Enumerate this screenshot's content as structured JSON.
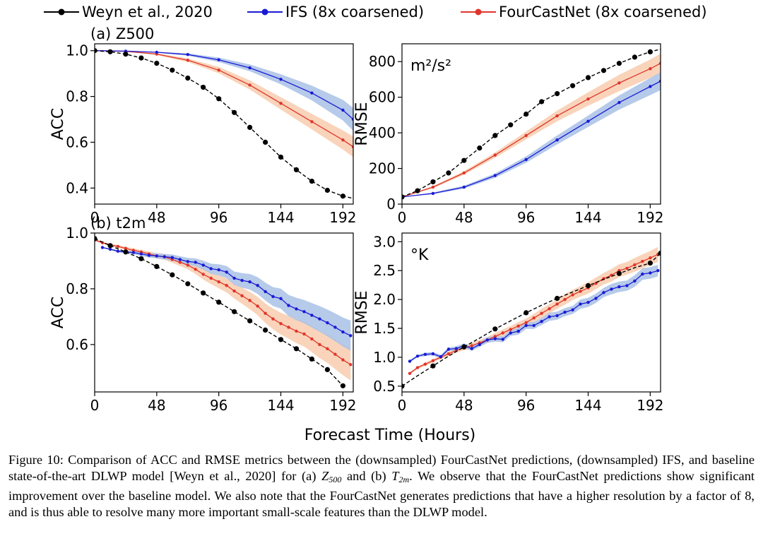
{
  "legend": {
    "entries": [
      {
        "label": "Weyn et al., 2020",
        "color": "#000000"
      },
      {
        "label": "IFS (8x coarsened)",
        "color": "#1010dd"
      },
      {
        "label": "FourCastNet (8x coarsened)",
        "color": "#e0352b"
      }
    ]
  },
  "xlabel_shared": "Forecast Time (Hours)",
  "colors": {
    "weyn": "#000000",
    "ifs": "#1a1ad4",
    "ifs_band": "#a9c1e6",
    "fcn": "#e0352b",
    "fcn_band": "#f8ccae"
  },
  "chart_data": [
    {
      "type": "line",
      "id": "acc_z500",
      "title": "(a) Z500",
      "ylabel": "ACC",
      "unit": "",
      "xlim": [
        0,
        200
      ],
      "ylim": [
        0.33,
        1.03
      ],
      "xticks": [
        "0",
        "48",
        "96",
        "144",
        "192"
      ],
      "xtick_values": [
        0,
        48,
        96,
        144,
        192
      ],
      "yticks": [
        "0.4",
        "0.6",
        "0.8",
        "1.0"
      ],
      "ytick_values": [
        0.4,
        0.6,
        0.8,
        1.0
      ],
      "series": [
        {
          "name": "Weyn et al., 2020",
          "key": "weyn",
          "x": [
            0,
            12,
            24,
            36,
            48,
            60,
            72,
            84,
            96,
            108,
            120,
            132,
            144,
            156,
            168,
            180,
            192,
            200
          ],
          "y": [
            1.0,
            0.995,
            0.985,
            0.968,
            0.945,
            0.915,
            0.88,
            0.84,
            0.79,
            0.73,
            0.665,
            0.6,
            0.535,
            0.48,
            0.43,
            0.39,
            0.365,
            0.355
          ],
          "markers": [
            0,
            12,
            24,
            36,
            48,
            60,
            72,
            84,
            96,
            108,
            120,
            132,
            144,
            156,
            168,
            180,
            192
          ]
        },
        {
          "name": "IFS (8x coarsened)",
          "key": "ifs",
          "x": [
            0,
            24,
            48,
            72,
            96,
            120,
            144,
            168,
            192,
            200
          ],
          "y": [
            1.0,
            0.998,
            0.993,
            0.983,
            0.96,
            0.925,
            0.875,
            0.815,
            0.74,
            0.7
          ],
          "band": [
            0.0,
            0.0,
            0.002,
            0.005,
            0.01,
            0.015,
            0.022,
            0.032,
            0.045,
            0.05
          ]
        },
        {
          "name": "FourCastNet (8x coarsened)",
          "key": "fcn",
          "x": [
            0,
            24,
            48,
            72,
            96,
            120,
            144,
            168,
            192,
            200
          ],
          "y": [
            1.0,
            0.997,
            0.985,
            0.958,
            0.915,
            0.85,
            0.77,
            0.69,
            0.61,
            0.58
          ],
          "band": [
            0.0,
            0.0,
            0.004,
            0.008,
            0.014,
            0.02,
            0.027,
            0.034,
            0.042,
            0.045
          ]
        }
      ]
    },
    {
      "type": "line",
      "id": "rmse_z500",
      "title": "",
      "ylabel": "RMSE",
      "unit": "m²/s²",
      "xlim": [
        0,
        200
      ],
      "ylim": [
        0,
        900
      ],
      "xticks": [
        "0",
        "48",
        "96",
        "144",
        "192"
      ],
      "xtick_values": [
        0,
        48,
        96,
        144,
        192
      ],
      "yticks": [
        "0",
        "200",
        "400",
        "600",
        "800"
      ],
      "ytick_values": [
        0,
        200,
        400,
        600,
        800
      ],
      "series": [
        {
          "name": "Weyn et al., 2020",
          "key": "weyn",
          "x": [
            0,
            12,
            24,
            36,
            48,
            60,
            72,
            84,
            96,
            108,
            120,
            132,
            144,
            156,
            168,
            180,
            192,
            200
          ],
          "y": [
            40,
            75,
            125,
            175,
            245,
            315,
            385,
            445,
            505,
            575,
            620,
            665,
            710,
            750,
            790,
            825,
            855,
            870
          ],
          "markers": [
            0,
            12,
            24,
            36,
            48,
            60,
            72,
            84,
            96,
            108,
            120,
            132,
            144,
            156,
            168,
            180,
            192
          ]
        },
        {
          "name": "IFS (8x coarsened)",
          "key": "ifs",
          "x": [
            0,
            24,
            48,
            72,
            96,
            120,
            144,
            168,
            192,
            200
          ],
          "y": [
            40,
            60,
            95,
            160,
            250,
            360,
            465,
            570,
            660,
            690
          ],
          "band": [
            0,
            5,
            8,
            12,
            18,
            25,
            32,
            40,
            48,
            50
          ]
        },
        {
          "name": "FourCastNet (8x coarsened)",
          "key": "fcn",
          "x": [
            0,
            24,
            48,
            72,
            96,
            120,
            144,
            168,
            192,
            200
          ],
          "y": [
            40,
            95,
            175,
            275,
            385,
            495,
            590,
            680,
            760,
            790
          ],
          "band": [
            0,
            6,
            10,
            15,
            22,
            30,
            38,
            46,
            52,
            55
          ]
        }
      ]
    },
    {
      "type": "line",
      "id": "acc_t2m",
      "title": "(b) t2m",
      "ylabel": "ACC",
      "unit": "",
      "xlim": [
        0,
        200
      ],
      "ylim": [
        0.43,
        1.0
      ],
      "xticks": [
        "0",
        "48",
        "96",
        "144",
        "192"
      ],
      "xtick_values": [
        0,
        48,
        96,
        144,
        192
      ],
      "yticks": [
        "0.6",
        "0.8",
        "1.0"
      ],
      "ytick_values": [
        0.6,
        0.8,
        1.0
      ],
      "series": [
        {
          "name": "Weyn et al., 2020",
          "key": "weyn",
          "x": [
            0,
            12,
            24,
            36,
            48,
            60,
            72,
            84,
            96,
            108,
            120,
            132,
            144,
            156,
            168,
            180,
            192
          ],
          "y": [
            0.98,
            0.955,
            0.932,
            0.908,
            0.88,
            0.85,
            0.818,
            0.785,
            0.752,
            0.718,
            0.685,
            0.652,
            0.618,
            0.585,
            0.548,
            0.51,
            0.452
          ],
          "markers": [
            0,
            12,
            24,
            36,
            48,
            60,
            72,
            84,
            96,
            108,
            120,
            132,
            144,
            156,
            168,
            180,
            192
          ]
        },
        {
          "name": "IFS (8x coarsened)",
          "key": "ifs",
          "x": [
            6,
            12,
            18,
            24,
            30,
            36,
            42,
            48,
            54,
            60,
            66,
            72,
            78,
            84,
            90,
            96,
            102,
            108,
            114,
            120,
            126,
            132,
            138,
            144,
            150,
            156,
            162,
            168,
            174,
            180,
            186,
            192,
            198
          ],
          "y": [
            0.948,
            0.942,
            0.935,
            0.932,
            0.93,
            0.925,
            0.92,
            0.918,
            0.915,
            0.912,
            0.905,
            0.898,
            0.895,
            0.885,
            0.872,
            0.868,
            0.86,
            0.838,
            0.83,
            0.825,
            0.812,
            0.79,
            0.772,
            0.765,
            0.74,
            0.728,
            0.718,
            0.705,
            0.692,
            0.678,
            0.662,
            0.645,
            0.632
          ],
          "band": [
            0.002,
            0.003,
            0.004,
            0.005,
            0.006,
            0.007,
            0.008,
            0.009,
            0.01,
            0.011,
            0.012,
            0.013,
            0.014,
            0.016,
            0.018,
            0.02,
            0.022,
            0.024,
            0.026,
            0.028,
            0.03,
            0.032,
            0.034,
            0.036,
            0.038,
            0.04,
            0.042,
            0.044,
            0.046,
            0.048,
            0.05,
            0.052,
            0.054
          ]
        },
        {
          "name": "FourCastNet (8x coarsened)",
          "key": "fcn",
          "x": [
            0,
            6,
            12,
            18,
            24,
            30,
            36,
            42,
            48,
            54,
            60,
            66,
            72,
            78,
            84,
            90,
            96,
            102,
            108,
            114,
            120,
            126,
            132,
            138,
            144,
            150,
            156,
            162,
            168,
            174,
            180,
            186,
            192,
            198
          ],
          "y": [
            0.975,
            0.965,
            0.958,
            0.952,
            0.945,
            0.938,
            0.932,
            0.925,
            0.918,
            0.915,
            0.905,
            0.895,
            0.885,
            0.87,
            0.852,
            0.838,
            0.825,
            0.812,
            0.792,
            0.775,
            0.758,
            0.738,
            0.712,
            0.692,
            0.675,
            0.662,
            0.648,
            0.638,
            0.62,
            0.6,
            0.585,
            0.565,
            0.545,
            0.528
          ],
          "band": [
            0.002,
            0.003,
            0.004,
            0.005,
            0.006,
            0.007,
            0.008,
            0.009,
            0.01,
            0.011,
            0.012,
            0.013,
            0.015,
            0.017,
            0.019,
            0.021,
            0.023,
            0.025,
            0.027,
            0.029,
            0.031,
            0.033,
            0.035,
            0.037,
            0.039,
            0.041,
            0.043,
            0.045,
            0.047,
            0.049,
            0.051,
            0.053,
            0.055,
            0.057
          ]
        }
      ]
    },
    {
      "type": "line",
      "id": "rmse_t2m",
      "title": "",
      "ylabel": "RMSE",
      "unit": "°K",
      "xlim": [
        0,
        200
      ],
      "ylim": [
        0.4,
        3.15
      ],
      "xticks": [
        "0",
        "48",
        "96",
        "144",
        "192"
      ],
      "xtick_values": [
        0,
        48,
        96,
        144,
        192
      ],
      "yticks": [
        "0.5",
        "1.0",
        "1.5",
        "2.0",
        "2.5",
        "3.0"
      ],
      "ytick_values": [
        0.5,
        1.0,
        1.5,
        2.0,
        2.5,
        3.0
      ],
      "series": [
        {
          "name": "Weyn et al., 2020",
          "key": "weyn",
          "x": [
            0,
            12,
            24,
            36,
            48,
            60,
            72,
            84,
            96,
            108,
            120,
            132,
            144,
            156,
            168,
            180,
            192,
            200
          ],
          "y": [
            0.5,
            0.68,
            0.85,
            1.02,
            1.18,
            1.33,
            1.49,
            1.63,
            1.77,
            1.9,
            2.02,
            2.13,
            2.24,
            2.35,
            2.45,
            2.55,
            2.63,
            2.8
          ],
          "markers": [
            0,
            24,
            48,
            72,
            96,
            120,
            144,
            168,
            192,
            200
          ]
        },
        {
          "name": "IFS (8x coarsened)",
          "key": "ifs",
          "x": [
            6,
            12,
            18,
            24,
            30,
            36,
            42,
            48,
            54,
            60,
            66,
            72,
            78,
            84,
            90,
            96,
            102,
            108,
            114,
            120,
            126,
            132,
            138,
            144,
            150,
            156,
            162,
            168,
            174,
            180,
            186,
            192,
            198
          ],
          "y": [
            0.93,
            1.02,
            1.05,
            1.06,
            1.01,
            1.14,
            1.15,
            1.2,
            1.15,
            1.22,
            1.3,
            1.32,
            1.31,
            1.42,
            1.45,
            1.55,
            1.55,
            1.62,
            1.7,
            1.72,
            1.78,
            1.82,
            1.92,
            1.95,
            2.02,
            2.12,
            2.18,
            2.22,
            2.24,
            2.32,
            2.44,
            2.46,
            2.5
          ],
          "band": [
            0.02,
            0.02,
            0.03,
            0.03,
            0.03,
            0.03,
            0.04,
            0.04,
            0.04,
            0.04,
            0.05,
            0.05,
            0.05,
            0.05,
            0.06,
            0.06,
            0.06,
            0.06,
            0.07,
            0.07,
            0.07,
            0.07,
            0.08,
            0.08,
            0.08,
            0.08,
            0.09,
            0.09,
            0.09,
            0.1,
            0.1,
            0.1,
            0.1
          ]
        },
        {
          "name": "FourCastNet (8x coarsened)",
          "key": "fcn",
          "x": [
            6,
            12,
            18,
            24,
            30,
            36,
            42,
            48,
            54,
            60,
            66,
            72,
            78,
            84,
            90,
            96,
            102,
            108,
            114,
            120,
            126,
            132,
            138,
            144,
            150,
            156,
            162,
            168,
            174,
            180,
            186,
            192,
            198
          ],
          "y": [
            0.72,
            0.82,
            0.88,
            0.94,
            1.0,
            1.06,
            1.12,
            1.16,
            1.2,
            1.25,
            1.3,
            1.36,
            1.42,
            1.48,
            1.54,
            1.6,
            1.68,
            1.76,
            1.84,
            1.92,
            2.0,
            2.08,
            2.14,
            2.2,
            2.28,
            2.36,
            2.42,
            2.5,
            2.54,
            2.6,
            2.66,
            2.72,
            2.78
          ],
          "band": [
            0.02,
            0.02,
            0.03,
            0.03,
            0.03,
            0.04,
            0.04,
            0.04,
            0.05,
            0.05,
            0.05,
            0.06,
            0.06,
            0.06,
            0.07,
            0.07,
            0.07,
            0.08,
            0.08,
            0.08,
            0.09,
            0.09,
            0.09,
            0.1,
            0.1,
            0.1,
            0.11,
            0.11,
            0.11,
            0.12,
            0.12,
            0.12,
            0.13
          ]
        }
      ]
    }
  ],
  "caption": {
    "part1": "Figure 10: Comparison of ACC and RMSE metrics between the (downsampled) FourCastNet predictions, (downsampled) IFS, and baseline state-of-the-art DLWP model [Weyn et al., 2020] for (a) ",
    "sym_a": "Z",
    "sub_a": "500",
    "part2": " and (b) ",
    "sym_b": "T",
    "sub_b": "2m",
    "part3": ". We observe that the FourCastNet predictions show significant improvement over the baseline model. We also note that the FourCastNet generates predictions that have a higher resolution by a factor of 8, and is thus able to resolve many more important small-scale features than the DLWP model."
  }
}
